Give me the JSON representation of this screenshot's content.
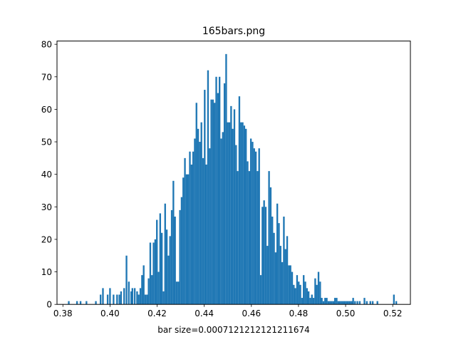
{
  "chart_data": {
    "type": "bar",
    "title": "165bars.png",
    "xlabel": "bar size=0.0007121212121211674",
    "ylabel": "",
    "color": "#1f77b4",
    "xlim": [
      0.3775,
      0.5275
    ],
    "ylim": [
      0,
      81
    ],
    "xticks": [
      0.38,
      0.4,
      0.42,
      0.44,
      0.46,
      0.48,
      0.5,
      0.52
    ],
    "xtick_labels": [
      "0.38",
      "0.40",
      "0.42",
      "0.44",
      "0.46",
      "0.48",
      "0.50",
      "0.52"
    ],
    "yticks": [
      0,
      10,
      20,
      30,
      40,
      50,
      60,
      70,
      80
    ],
    "ytick_labels": [
      "0",
      "10",
      "20",
      "30",
      "40",
      "50",
      "60",
      "70",
      "80"
    ],
    "bar_width": 0.000712,
    "x": [
      0.3825,
      0.386,
      0.3875,
      0.39,
      0.394,
      0.396,
      0.397,
      0.399,
      0.4,
      0.4015,
      0.403,
      0.404,
      0.4047,
      0.406,
      0.407,
      0.408,
      0.409,
      0.4095,
      0.4105,
      0.4115,
      0.4122,
      0.4129,
      0.4136,
      0.4143,
      0.415,
      0.4157,
      0.4164,
      0.4171,
      0.4178,
      0.4185,
      0.4192,
      0.4199,
      0.4206,
      0.4213,
      0.422,
      0.4227,
      0.4234,
      0.4241,
      0.4248,
      0.4255,
      0.4262,
      0.4269,
      0.4276,
      0.4283,
      0.429,
      0.4297,
      0.4304,
      0.4311,
      0.4318,
      0.4325,
      0.4332,
      0.4339,
      0.4346,
      0.4353,
      0.436,
      0.4367,
      0.4374,
      0.4381,
      0.4388,
      0.4395,
      0.4402,
      0.4409,
      0.4416,
      0.4423,
      0.443,
      0.4437,
      0.4444,
      0.4451,
      0.4458,
      0.4465,
      0.4472,
      0.4479,
      0.4486,
      0.4493,
      0.45,
      0.4507,
      0.4514,
      0.4521,
      0.4528,
      0.4535,
      0.4542,
      0.4549,
      0.4556,
      0.4563,
      0.457,
      0.4577,
      0.4584,
      0.4591,
      0.4598,
      0.4605,
      0.4612,
      0.4619,
      0.4626,
      0.4633,
      0.464,
      0.4647,
      0.4654,
      0.4661,
      0.4668,
      0.4675,
      0.4682,
      0.4689,
      0.4696,
      0.4703,
      0.471,
      0.4717,
      0.4724,
      0.4731,
      0.4738,
      0.4745,
      0.4752,
      0.4759,
      0.4766,
      0.4773,
      0.478,
      0.4787,
      0.4794,
      0.4801,
      0.4808,
      0.4815,
      0.4822,
      0.4829,
      0.4836,
      0.4843,
      0.485,
      0.4857,
      0.4864,
      0.4871,
      0.4878,
      0.4885,
      0.4892,
      0.4899,
      0.4906,
      0.4913,
      0.492,
      0.4927,
      0.4934,
      0.4941,
      0.4948,
      0.4955,
      0.4962,
      0.4969,
      0.4976,
      0.4983,
      0.499,
      0.4997,
      0.5004,
      0.5011,
      0.5018,
      0.5025,
      0.5032,
      0.504,
      0.505,
      0.506,
      0.508,
      0.509,
      0.5105,
      0.5115,
      0.5135,
      0.5205,
      0.5215
    ],
    "values": [
      1,
      1,
      1,
      1,
      1,
      3,
      5,
      3,
      5,
      3,
      3,
      3,
      4,
      5,
      15,
      7,
      4,
      5,
      5,
      4,
      3,
      5,
      9,
      12,
      3,
      3,
      8,
      19,
      9,
      19,
      20,
      26,
      10,
      28,
      22,
      4,
      31,
      23,
      15,
      21,
      29,
      38,
      27,
      7,
      7,
      29,
      33,
      39,
      45,
      40,
      40,
      47,
      43,
      47,
      51,
      62,
      54,
      50,
      56,
      45,
      66,
      43,
      72,
      48,
      63,
      63,
      62,
      70,
      65,
      70,
      51,
      53,
      68,
      77,
      56,
      56,
      61,
      54,
      60,
      49,
      41,
      64,
      56,
      56,
      55,
      54,
      44,
      41,
      51,
      50,
      48,
      47,
      41,
      48,
      9,
      30,
      32,
      30,
      18,
      41,
      36,
      27,
      22,
      16,
      31,
      25,
      18,
      13,
      27,
      17,
      21,
      12,
      12,
      10,
      6,
      5,
      9,
      7,
      6,
      2,
      9,
      7,
      5,
      4,
      2,
      3,
      2,
      8,
      6,
      10,
      7,
      2,
      1,
      2,
      2,
      1,
      1,
      1,
      1,
      2,
      2,
      1,
      1,
      1,
      1,
      1,
      1,
      1,
      1,
      1,
      2,
      1,
      1,
      1,
      2,
      1,
      1,
      1,
      1,
      3,
      1
    ]
  }
}
